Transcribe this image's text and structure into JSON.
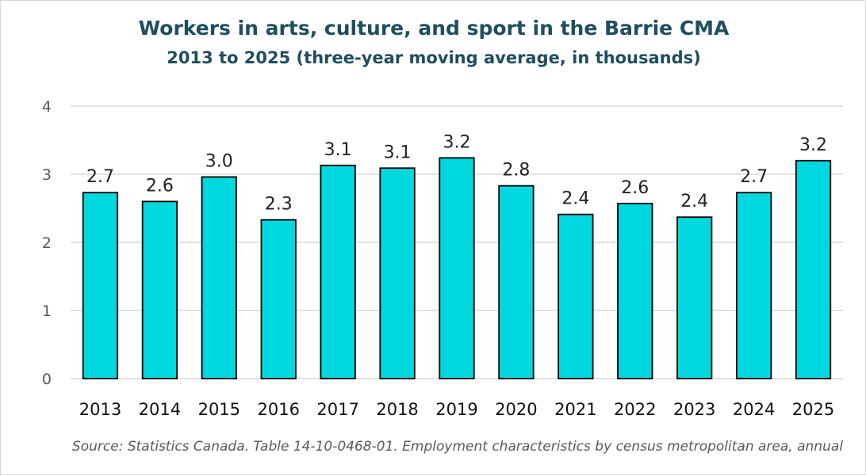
{
  "chart_data": {
    "type": "bar",
    "title": "Workers in arts, culture, and sport in the Barrie CMA",
    "subtitle": "2013 to 2025 (three-year moving average,  in thousands)",
    "categories": [
      "2013",
      "2014",
      "2015",
      "2016",
      "2017",
      "2018",
      "2019",
      "2020",
      "2021",
      "2022",
      "2023",
      "2024",
      "2025"
    ],
    "values": [
      2.73,
      2.6,
      2.96,
      2.33,
      3.13,
      3.09,
      3.24,
      2.83,
      2.41,
      2.57,
      2.37,
      2.73,
      3.2
    ],
    "data_labels": [
      "2.7",
      "2.6",
      "3.0",
      "2.3",
      "3.1",
      "3.1",
      "3.2",
      "2.8",
      "2.4",
      "2.6",
      "2.4",
      "2.7",
      "3.2"
    ],
    "y_ticks": [
      "0",
      "1",
      "2",
      "3",
      "4"
    ],
    "ylim": [
      0,
      4
    ],
    "grid": true,
    "legend": "none",
    "bar_color": "#00d8df",
    "bar_outline": "#000000",
    "source": "Source: Statistics Canada. Table 14-10-0468-01. Employment characteristics by census metropolitan area, annual"
  }
}
